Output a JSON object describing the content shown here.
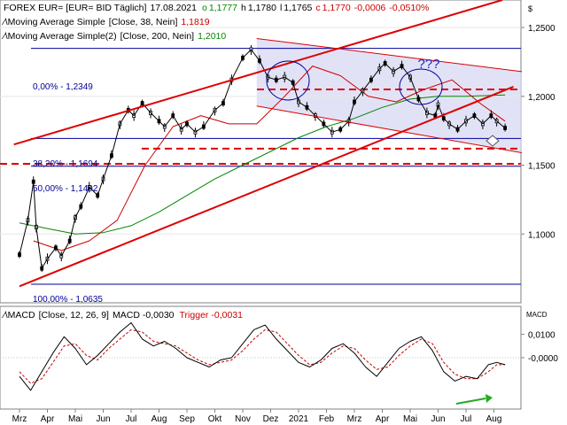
{
  "header": {
    "instrument": "FOREX EUR= [EUR= BID Täglich]",
    "date": "17.08.2021",
    "o_label": "o",
    "o_value": "1,1777",
    "h_label": "h",
    "h_value": "1,1780",
    "l_label": "l",
    "l_value": "1,1765",
    "c_label": "c",
    "c_value": "1,1770",
    "change": "-0,0006",
    "change_pct": "-0,0510%",
    "currency": "$"
  },
  "legend": [
    {
      "label": "Moving Average Simple",
      "params": "[Close, 38, Nein]",
      "value": "1,1819",
      "color": "#cc0000"
    },
    {
      "label": "Moving Average Simple(2)",
      "params": "[Close, 200, Nein]",
      "value": "1,2010",
      "color": "#008800"
    }
  ],
  "macd_header": {
    "label": "MACD",
    "params": "[Close, 12, 26, 9]",
    "value_label": "MACD",
    "value": "-0,0030",
    "trigger_label": "Trigger",
    "trigger_value": "-0,0031",
    "axis_title": "MACD"
  },
  "fib_labels": [
    {
      "text": "0,00% - 1,2349",
      "level": 1.2349
    },
    {
      "text": "38,20% - 1,1694",
      "level": 1.1694
    },
    {
      "text": "50,00% - 1,1492",
      "level": 1.1492
    },
    {
      "text": "100,00% - 1,0635",
      "level": 1.0635
    }
  ],
  "annotation": "???",
  "chart_data": {
    "type": "line",
    "price_axis": {
      "min": 1.05,
      "max": 1.27,
      "ticks": [
        "1,2500",
        "1,2000",
        "1,1500",
        "1,1000"
      ],
      "tick_values": [
        1.25,
        1.2,
        1.15,
        1.1
      ]
    },
    "macd_axis": {
      "min": -0.022,
      "max": 0.022,
      "ticks": [
        "0,0100",
        "-0,0000"
      ],
      "tick_values": [
        0.01,
        0.0
      ]
    },
    "x_axis": {
      "labels": [
        "Mrz",
        "Apr",
        "Mai",
        "Jun",
        "Jul",
        "Aug",
        "Sep",
        "Okt",
        "Nov",
        "Dez",
        "2021",
        "Feb",
        "Mrz",
        "Apr",
        "Mai",
        "Jun",
        "Jul",
        "Aug"
      ],
      "months": [
        0,
        1,
        2,
        3,
        4,
        5,
        6,
        7,
        8,
        9,
        10,
        11,
        12,
        13,
        14,
        15,
        16,
        17
      ]
    },
    "price": {
      "t": [
        0,
        0.3,
        0.5,
        0.6,
        0.8,
        1.0,
        1.3,
        1.5,
        1.8,
        2.0,
        2.2,
        2.5,
        2.8,
        3.0,
        3.3,
        3.6,
        3.9,
        4.1,
        4.4,
        4.7,
        5.0,
        5.2,
        5.5,
        5.8,
        6.0,
        6.3,
        6.6,
        7.0,
        7.3,
        7.6,
        8.0,
        8.3,
        8.6,
        8.9,
        9.2,
        9.5,
        9.8,
        10.0,
        10.3,
        10.6,
        10.9,
        11.2,
        11.5,
        11.8,
        12.0,
        12.3,
        12.6,
        12.9,
        13.1,
        13.4,
        13.7,
        14.0,
        14.3,
        14.6,
        14.9,
        15.0,
        15.2,
        15.4,
        15.7,
        16.0,
        16.3,
        16.6,
        16.9,
        17.1,
        17.4
      ],
      "close": [
        1.085,
        1.11,
        1.138,
        1.105,
        1.075,
        1.082,
        1.09,
        1.084,
        1.095,
        1.112,
        1.12,
        1.134,
        1.128,
        1.14,
        1.157,
        1.18,
        1.19,
        1.186,
        1.195,
        1.188,
        1.182,
        1.178,
        1.186,
        1.176,
        1.18,
        1.174,
        1.178,
        1.19,
        1.195,
        1.212,
        1.228,
        1.234,
        1.226,
        1.214,
        1.212,
        1.214,
        1.21,
        1.196,
        1.192,
        1.186,
        1.18,
        1.174,
        1.176,
        1.182,
        1.196,
        1.204,
        1.212,
        1.22,
        1.224,
        1.218,
        1.222,
        1.214,
        1.198,
        1.188,
        1.186,
        1.194,
        1.184,
        1.18,
        1.176,
        1.182,
        1.186,
        1.18,
        1.186,
        1.182,
        1.177
      ]
    },
    "ma38": {
      "t": [
        0.5,
        1.5,
        2.5,
        3.5,
        4.5,
        5.5,
        6.5,
        7.5,
        8.5,
        9.5,
        10.5,
        11.5,
        12.5,
        13.5,
        14.5,
        15.5,
        16.5,
        17.4
      ],
      "values": [
        1.095,
        1.088,
        1.095,
        1.11,
        1.15,
        1.178,
        1.186,
        1.18,
        1.18,
        1.2,
        1.222,
        1.215,
        1.2,
        1.196,
        1.205,
        1.212,
        1.195,
        1.182
      ]
    },
    "ma200": {
      "t": [
        0,
        1,
        2,
        3,
        4,
        5,
        6,
        7,
        8,
        9,
        10,
        11,
        12,
        13,
        14,
        15,
        16,
        17.4
      ],
      "values": [
        1.108,
        1.104,
        1.1,
        1.101,
        1.106,
        1.116,
        1.128,
        1.14,
        1.15,
        1.16,
        1.17,
        1.178,
        1.184,
        1.192,
        1.198,
        1.2,
        1.2,
        1.201
      ]
    },
    "macd": {
      "t": [
        0,
        0.4,
        0.8,
        1.2,
        1.6,
        2.0,
        2.4,
        2.8,
        3.2,
        3.6,
        4.0,
        4.4,
        4.8,
        5.2,
        5.6,
        6.0,
        6.4,
        6.8,
        7.2,
        7.6,
        8.0,
        8.4,
        8.8,
        9.2,
        9.6,
        10.0,
        10.4,
        10.8,
        11.2,
        11.6,
        12.0,
        12.4,
        12.8,
        13.2,
        13.6,
        14.0,
        14.4,
        14.8,
        15.2,
        15.6,
        16.0,
        16.4,
        16.8,
        17.1,
        17.4
      ],
      "values": [
        -0.008,
        -0.014,
        -0.006,
        0.002,
        0.009,
        0.004,
        -0.003,
        0.001,
        0.006,
        0.011,
        0.015,
        0.008,
        0.005,
        0.007,
        0.004,
        0.0,
        -0.002,
        -0.004,
        -0.001,
        0.0,
        0.006,
        0.012,
        0.014,
        0.008,
        0.003,
        -0.002,
        -0.004,
        -0.001,
        0.004,
        0.006,
        0.002,
        -0.004,
        -0.008,
        -0.002,
        0.004,
        0.007,
        0.009,
        0.003,
        -0.006,
        -0.01,
        -0.008,
        -0.009,
        -0.003,
        -0.002,
        -0.003
      ]
    },
    "trigger": {
      "t": [
        0,
        0.4,
        0.8,
        1.2,
        1.6,
        2.0,
        2.4,
        2.8,
        3.2,
        3.6,
        4.0,
        4.4,
        4.8,
        5.2,
        5.6,
        6.0,
        6.4,
        6.8,
        7.2,
        7.6,
        8.0,
        8.4,
        8.8,
        9.2,
        9.6,
        10.0,
        10.4,
        10.8,
        11.2,
        11.6,
        12.0,
        12.4,
        12.8,
        13.2,
        13.6,
        14.0,
        14.4,
        14.8,
        15.2,
        15.6,
        16.0,
        16.4,
        16.8,
        17.1,
        17.4
      ],
      "values": [
        -0.006,
        -0.011,
        -0.009,
        -0.002,
        0.005,
        0.006,
        0.001,
        -0.001,
        0.004,
        0.008,
        0.012,
        0.011,
        0.007,
        0.006,
        0.005,
        0.002,
        -0.001,
        -0.003,
        -0.002,
        -0.001,
        0.003,
        0.008,
        0.012,
        0.011,
        0.006,
        0.001,
        -0.003,
        -0.002,
        0.002,
        0.005,
        0.004,
        -0.001,
        -0.005,
        -0.004,
        0.001,
        0.005,
        0.008,
        0.006,
        -0.002,
        -0.007,
        -0.009,
        -0.009,
        -0.006,
        -0.003,
        -0.003
      ]
    },
    "dashed_levels": [
      1.205,
      1.162,
      1.151
    ],
    "fib_levels": [
      1.2349,
      1.1694,
      1.1492,
      1.0635
    ],
    "channel": {
      "upper": [
        [
          -0.2,
          1.165
        ],
        [
          17.3,
          1.27
        ]
      ],
      "lower": [
        [
          0,
          1.062
        ],
        [
          17.7,
          1.207
        ]
      ]
    },
    "triangle": {
      "upper": [
        [
          8.5,
          1.242
        ],
        [
          18.0,
          1.218
        ]
      ],
      "lower": [
        [
          8.5,
          1.193
        ],
        [
          18.0,
          1.159
        ]
      ]
    },
    "colors": {
      "candles": "#000000",
      "ma38": "#cc0000",
      "ma200": "#008800",
      "fib": "#000099",
      "channel": "#dd0000",
      "macd": "#000000",
      "trigger": "#cc0000",
      "header_pos": "#008800",
      "header_neg": "#cc0000",
      "shade": "#d8d8f4"
    }
  }
}
